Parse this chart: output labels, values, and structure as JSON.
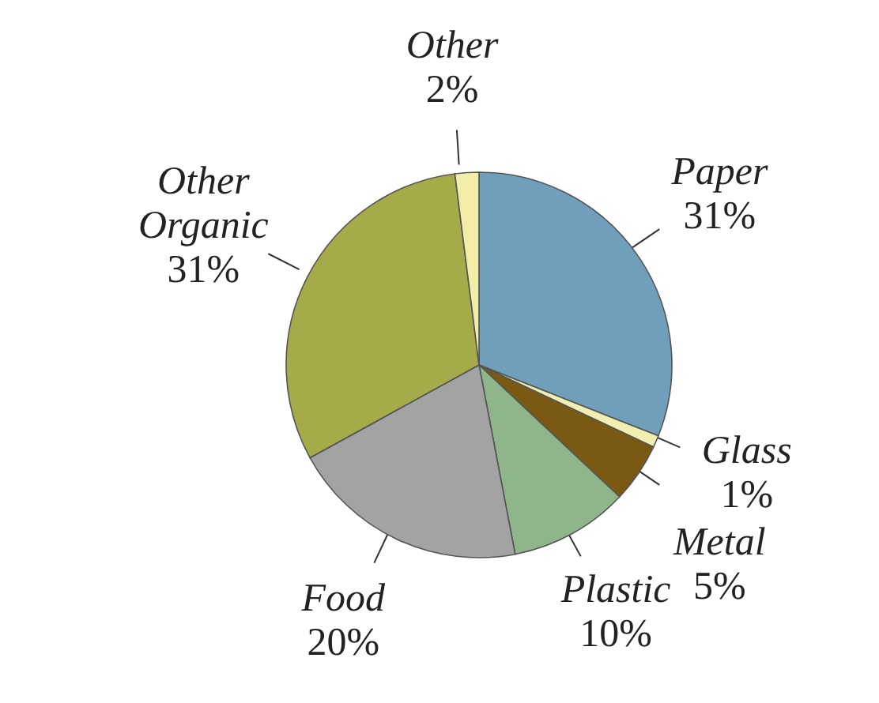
{
  "chart_data": {
    "type": "pie",
    "categories": [
      "Paper",
      "Glass",
      "Metal",
      "Plastic",
      "Food",
      "Other Organic",
      "Other"
    ],
    "values": [
      31,
      1,
      5,
      10,
      20,
      31,
      2
    ],
    "value_labels": [
      "31%",
      "1%",
      "5%",
      "10%",
      "20%",
      "31%",
      "2%"
    ],
    "colors": [
      "#6f9fba",
      "#f0eeb0",
      "#7a5a12",
      "#8fb58a",
      "#a3a3a3",
      "#a6ab4a",
      "#f2eea8"
    ]
  }
}
